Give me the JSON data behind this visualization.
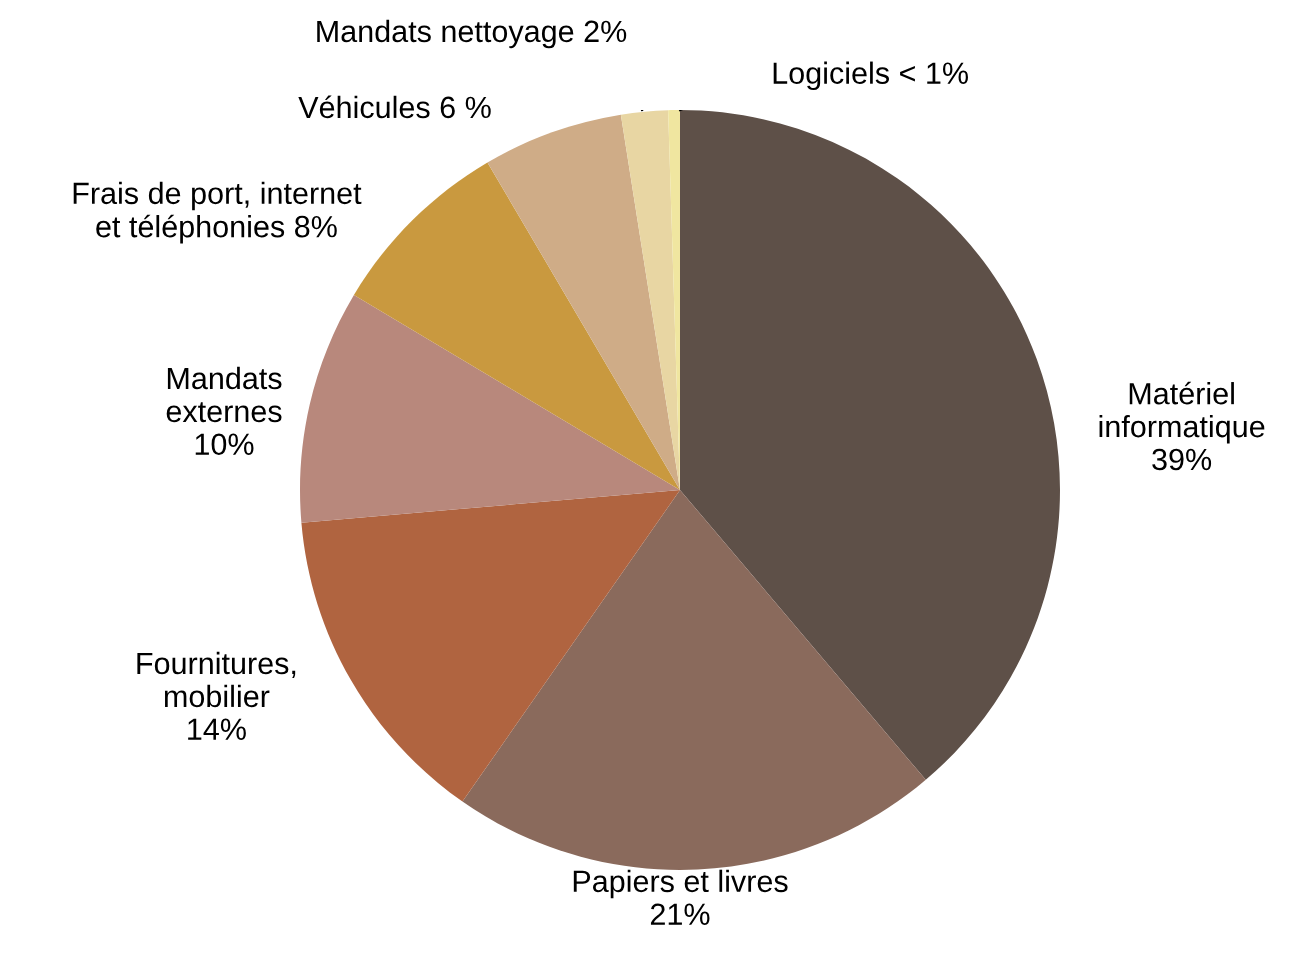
{
  "chart_data": {
    "type": "pie",
    "categories": [
      "Matériel\ninformatique",
      "Papiers et livres",
      "Fournitures,\nmobilier",
      "Mandats\nexternes",
      "Frais de port, internet\net téléphonies",
      "Véhicules",
      "Mandats nettoyage",
      "Logiciels"
    ],
    "values": [
      39,
      21,
      14,
      10,
      8,
      6,
      2,
      0.5
    ],
    "value_labels": [
      "39%",
      "21%",
      "14%",
      "10%",
      "8%",
      "6 %",
      "2%",
      "< 1%"
    ],
    "colors": [
      "#5e5048",
      "#8a6a5c",
      "#b06440",
      "#b8887c",
      "#c9993f",
      "#cfac87",
      "#e8d6a3",
      "#f0e6a0"
    ]
  }
}
